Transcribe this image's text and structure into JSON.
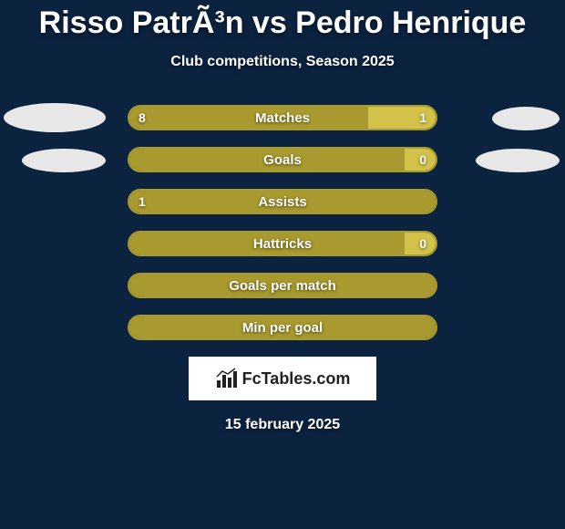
{
  "background_color": "#0c2340",
  "title": "Risso PatrÃ³n vs Pedro Henrique",
  "subtitle": "Club competitions, Season 2025",
  "footer_date": "15 february 2025",
  "logo_text": "FcTables.com",
  "colors": {
    "left_fill": "#a89a2e",
    "right_fill": "#d3c24a",
    "border": "#a89a2e",
    "ellipse": "#e8e8e8"
  },
  "bars": [
    {
      "label": "Matches",
      "left_value": "8",
      "right_value": "1",
      "left_pct": 78,
      "right_pct": 22,
      "show_left_ellipse": true,
      "show_right_ellipse": true,
      "ellipse_row": 1
    },
    {
      "label": "Goals",
      "left_value": "",
      "right_value": "0",
      "left_pct": 90,
      "right_pct": 10,
      "show_left_ellipse": true,
      "show_right_ellipse": true,
      "ellipse_row": 2
    },
    {
      "label": "Assists",
      "left_value": "1",
      "right_value": "",
      "left_pct": 100,
      "right_pct": 0,
      "show_left_ellipse": false,
      "show_right_ellipse": false
    },
    {
      "label": "Hattricks",
      "left_value": "",
      "right_value": "0",
      "left_pct": 90,
      "right_pct": 10,
      "show_left_ellipse": false,
      "show_right_ellipse": false
    },
    {
      "label": "Goals per match",
      "left_value": "",
      "right_value": "",
      "left_pct": 100,
      "right_pct": 0,
      "show_left_ellipse": false,
      "show_right_ellipse": false
    },
    {
      "label": "Min per goal",
      "left_value": "",
      "right_value": "",
      "left_pct": 100,
      "right_pct": 0,
      "show_left_ellipse": false,
      "show_right_ellipse": false
    }
  ]
}
